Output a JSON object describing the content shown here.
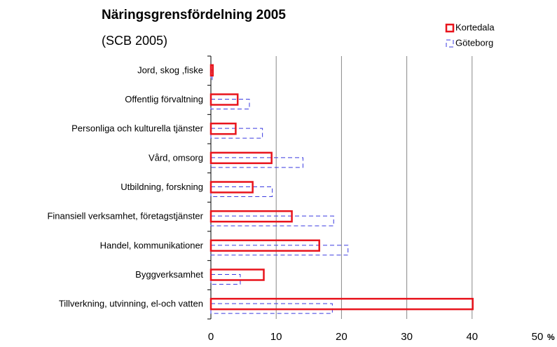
{
  "chart_data": {
    "type": "hbar",
    "title": "Näringsgrensfördelning 2005",
    "subtitle": "(SCB 2005)",
    "x_label": "%",
    "categories": [
      "Jord, skog ,fiske",
      "Offentlig förvaltning",
      "Personliga och kulturella tjänster",
      "Vård, omsorg",
      "Utbildning, forskning",
      "Finansiell verksamhet, företagstjänster",
      "Handel, kommunikationer",
      "Byggverksamhet",
      "Tillverkning, utvinning, el-och vatten"
    ],
    "series": [
      {
        "name": "Kortedala",
        "color": "#e8141c",
        "values": [
          0.3,
          4.1,
          3.8,
          9.3,
          6.4,
          12.4,
          16.6,
          8.1,
          40.1
        ]
      },
      {
        "name": "Göteborg",
        "color": "#3a3ae0",
        "values": [
          0.2,
          5.9,
          7.9,
          14.1,
          9.4,
          18.8,
          21.0,
          4.5,
          18.6
        ]
      }
    ],
    "xlim": [
      0,
      50
    ],
    "xticks": [
      0,
      10,
      20,
      30,
      40,
      50
    ],
    "grid": true,
    "legend": "top-right"
  }
}
